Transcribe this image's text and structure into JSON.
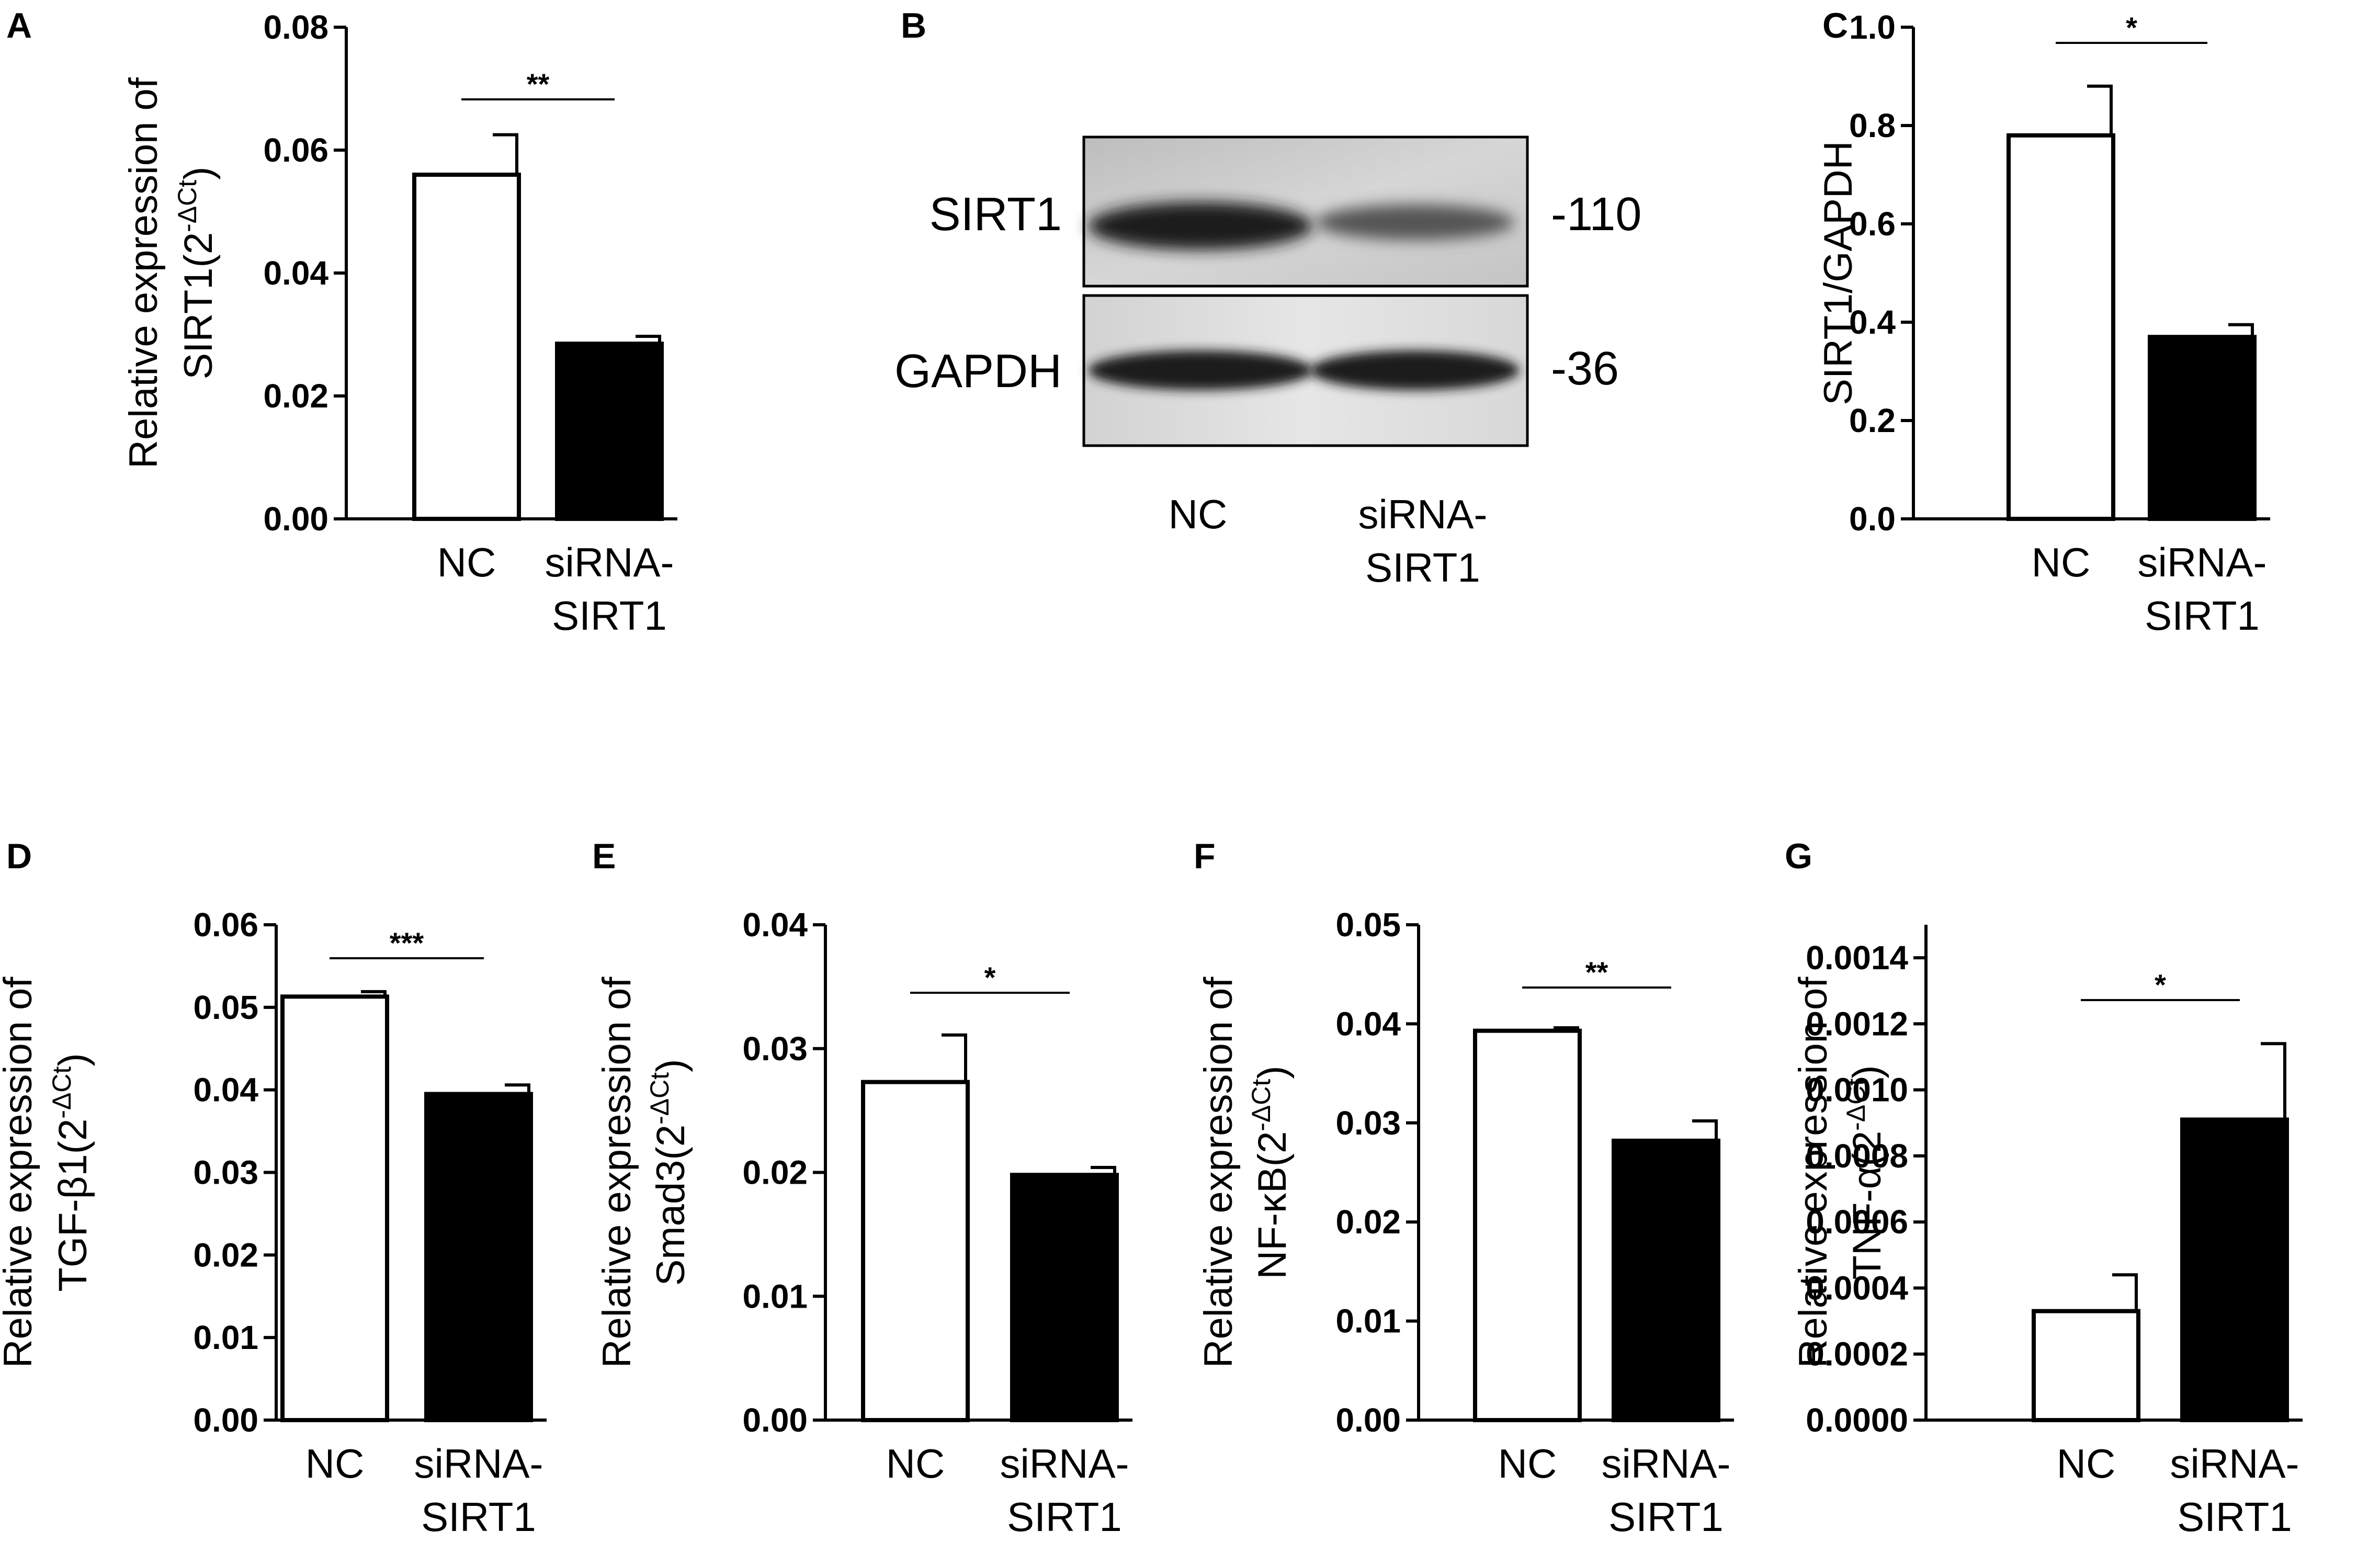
{
  "figure": {
    "panels": [
      "A",
      "B",
      "C",
      "D",
      "E",
      "F",
      "G"
    ],
    "colors": {
      "nc_fill": "#ffffff",
      "sirna_fill": "#000000",
      "stroke": "#000000"
    }
  },
  "chart_data": [
    {
      "panel": "A",
      "type": "bar",
      "categories": [
        "NC",
        "siRNA-SIRT1"
      ],
      "category_lines": [
        [
          "NC"
        ],
        [
          "siRNA-",
          "SIRT1"
        ]
      ],
      "values": [
        0.056,
        0.0285
      ],
      "errors": [
        0.0065,
        0.0012
      ],
      "ylabel_lines": [
        "Relative expression of",
        "SIRT1(2"
      ],
      "ylabel_sup": "-ΔCt",
      "ylim": [
        0,
        0.08
      ],
      "yticks": [
        0.0,
        0.02,
        0.04,
        0.06,
        0.08
      ],
      "ytick_labels": [
        "0.00",
        "0.02",
        "0.04",
        "0.06",
        "0.08"
      ],
      "significance": "**"
    },
    {
      "panel": "C",
      "type": "bar",
      "categories": [
        "NC",
        "siRNA-SIRT1"
      ],
      "category_lines": [
        [
          "NC"
        ],
        [
          "siRNA-",
          "SIRT1"
        ]
      ],
      "values": [
        0.78,
        0.37
      ],
      "errors": [
        0.1,
        0.025
      ],
      "ylabel_lines": [
        "SIRT1/GAPDH"
      ],
      "ylabel_sup": "",
      "ylim": [
        0,
        1.0
      ],
      "yticks": [
        0.0,
        0.2,
        0.4,
        0.6,
        0.8,
        1.0
      ],
      "ytick_labels": [
        "0.0",
        "0.2",
        "0.4",
        "0.6",
        "0.8",
        "1.0"
      ],
      "significance": "*"
    },
    {
      "panel": "D",
      "type": "bar",
      "categories": [
        "NC",
        "siRNA-SIRT1"
      ],
      "category_lines": [
        [
          "NC"
        ],
        [
          "siRNA-",
          "SIRT1"
        ]
      ],
      "values": [
        0.0513,
        0.0395
      ],
      "errors": [
        0.0006,
        0.0011
      ],
      "ylabel_lines": [
        "Relative expression of",
        "TGF-β1(2"
      ],
      "ylabel_sup": "-ΔCt",
      "ylim": [
        0,
        0.06
      ],
      "yticks": [
        0.0,
        0.01,
        0.02,
        0.03,
        0.04,
        0.05,
        0.06
      ],
      "ytick_labels": [
        "0.00",
        "0.01",
        "0.02",
        "0.03",
        "0.04",
        "0.05",
        "0.06"
      ],
      "significance": "***"
    },
    {
      "panel": "E",
      "type": "bar",
      "categories": [
        "NC",
        "siRNA-SIRT1"
      ],
      "category_lines": [
        [
          "NC"
        ],
        [
          "siRNA-",
          "SIRT1"
        ]
      ],
      "values": [
        0.0273,
        0.0198
      ],
      "errors": [
        0.0038,
        0.0006
      ],
      "ylabel_lines": [
        "Relative expression of",
        "Smad3(2"
      ],
      "ylabel_sup": "-ΔCt",
      "ylim": [
        0,
        0.04
      ],
      "yticks": [
        0.0,
        0.01,
        0.02,
        0.03,
        0.04
      ],
      "ytick_labels": [
        "0.00",
        "0.01",
        "0.02",
        "0.03",
        "0.04"
      ],
      "significance": "*"
    },
    {
      "panel": "F",
      "type": "bar",
      "categories": [
        "NC",
        "siRNA-SIRT1"
      ],
      "category_lines": [
        [
          "NC"
        ],
        [
          "siRNA-",
          "SIRT1"
        ]
      ],
      "values": [
        0.0393,
        0.0282
      ],
      "errors": [
        0.0003,
        0.002
      ],
      "ylabel_lines": [
        "Relative expression of",
        "NF-κB(2"
      ],
      "ylabel_sup": "-ΔCt",
      "ylim": [
        0,
        0.05
      ],
      "yticks": [
        0.0,
        0.01,
        0.02,
        0.03,
        0.04,
        0.05
      ],
      "ytick_labels": [
        "0.00",
        "0.01",
        "0.02",
        "0.03",
        "0.04",
        "0.05"
      ],
      "significance": "**"
    },
    {
      "panel": "G",
      "type": "bar",
      "categories": [
        "NC",
        "siRNA-SIRT1"
      ],
      "category_lines": [
        [
          "NC"
        ],
        [
          "siRNA-",
          "SIRT1"
        ]
      ],
      "values": [
        0.00033,
        0.00091
      ],
      "errors": [
        0.00011,
        0.00023
      ],
      "ylabel_lines": [
        "Relative expression of",
        "TNF-α(2"
      ],
      "ylabel_sup": "-ΔCt",
      "ylim": [
        0,
        0.0015
      ],
      "yticks": [
        0.0,
        0.0002,
        0.0004,
        0.0006,
        0.0008,
        0.001,
        0.0012,
        0.0014
      ],
      "ytick_labels": [
        "0.0000",
        "0.0002",
        "0.0004",
        "0.0006",
        "0.0008",
        "0.0010",
        "0.0012",
        "0.0014"
      ],
      "significance": "*"
    }
  ],
  "blot": {
    "panel": "B",
    "rows": [
      {
        "protein": "SIRT1",
        "size": "-110"
      },
      {
        "protein": "GAPDH",
        "size": "-36"
      }
    ],
    "lanes": [
      [
        "NC"
      ],
      [
        "siRNA-",
        "SIRT1"
      ]
    ]
  }
}
